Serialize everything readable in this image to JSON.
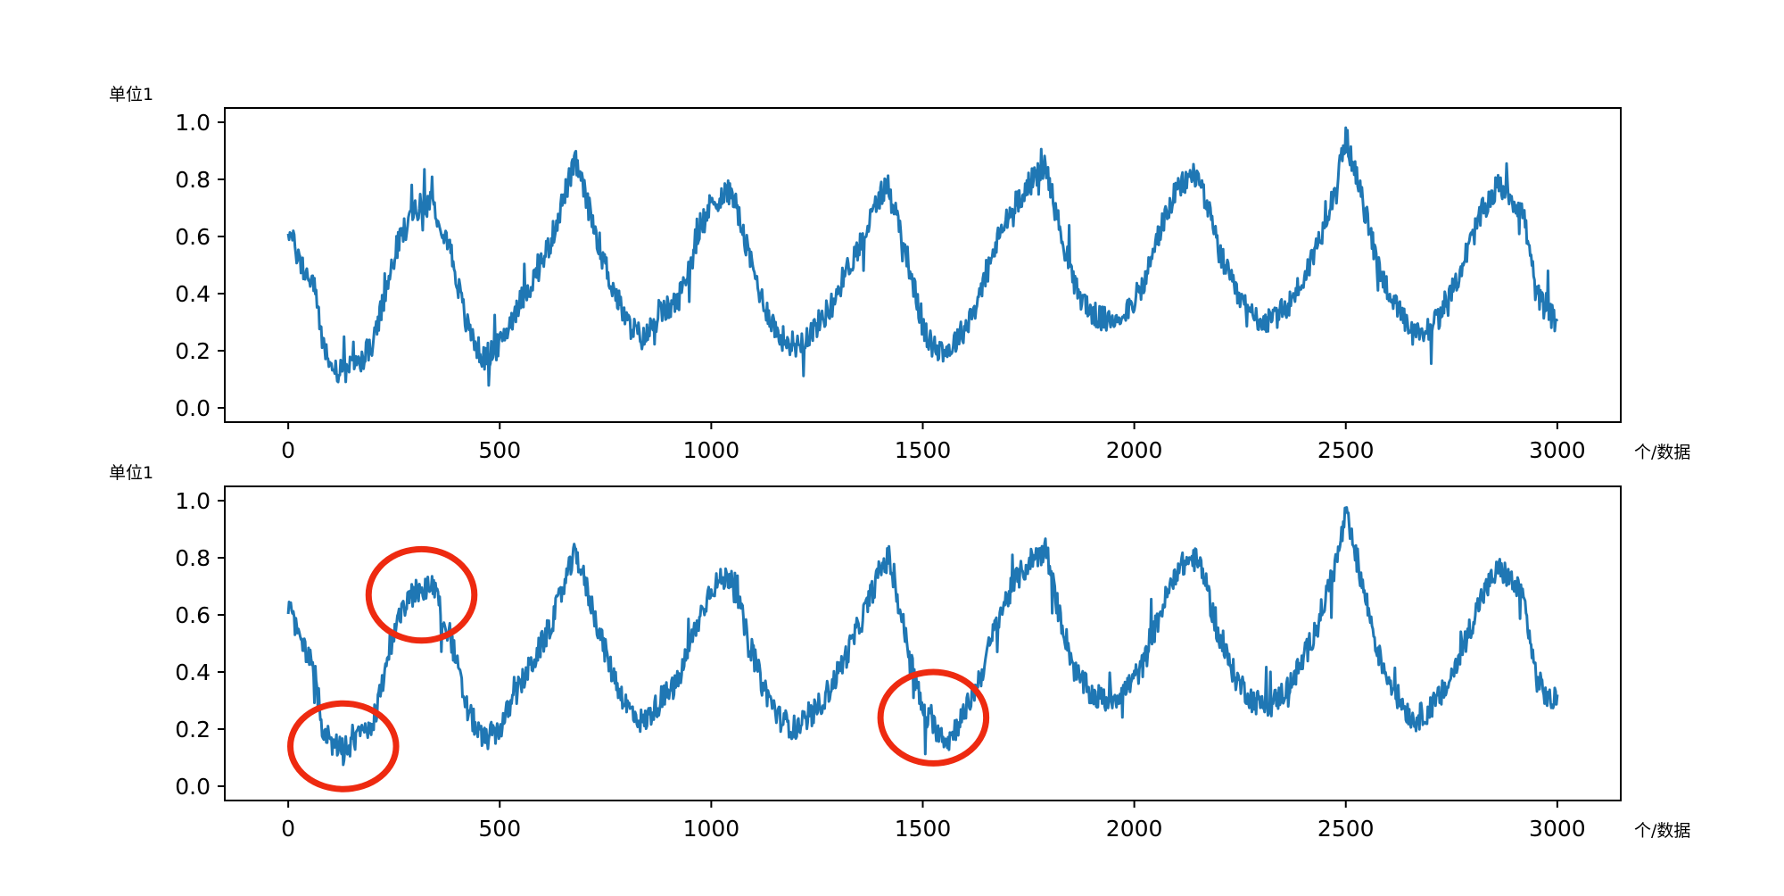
{
  "chart_data": [
    {
      "type": "line",
      "ylabel": "单位1",
      "xlabel": "个/数据",
      "xlim": [
        -150,
        3150
      ],
      "ylim": [
        -0.05,
        1.05
      ],
      "xticks": [
        0,
        500,
        1000,
        1500,
        2000,
        2500,
        3000
      ],
      "yticks": [
        0.0,
        0.2,
        0.4,
        0.6,
        0.8,
        1.0
      ],
      "xtick_labels": [
        "0",
        "500",
        "1000",
        "1500",
        "2000",
        "2500",
        "3000"
      ],
      "ytick_labels": [
        "0.0",
        "0.2",
        "0.4",
        "0.6",
        "0.8",
        "1.0"
      ],
      "grid": false,
      "legend": "none",
      "line_color": "#1f77b4",
      "series": [
        {
          "x": [
            0,
            30,
            60,
            80,
            100,
            130,
            160,
            200,
            230,
            260,
            300,
            340,
            380,
            420,
            460,
            500,
            540,
            580,
            620,
            660,
            680,
            720,
            760,
            800,
            840,
            880,
            920,
            960,
            1000,
            1050,
            1080,
            1120,
            1160,
            1200,
            1240,
            1280,
            1320,
            1360,
            1400,
            1420,
            1460,
            1500,
            1520,
            1560,
            1600,
            1640,
            1680,
            1720,
            1760,
            1790,
            1820,
            1860,
            1900,
            1940,
            1980,
            2020,
            2060,
            2100,
            2140,
            2160,
            2200,
            2240,
            2280,
            2320,
            2360,
            2400,
            2440,
            2480,
            2500,
            2540,
            2580,
            2620,
            2660,
            2700,
            2740,
            2780,
            2820,
            2860,
            2880,
            2920,
            2950,
            2980,
            3000
          ],
          "y": [
            0.63,
            0.5,
            0.43,
            0.25,
            0.14,
            0.12,
            0.15,
            0.22,
            0.4,
            0.58,
            0.7,
            0.72,
            0.58,
            0.3,
            0.17,
            0.22,
            0.35,
            0.45,
            0.58,
            0.78,
            0.86,
            0.65,
            0.45,
            0.3,
            0.24,
            0.33,
            0.37,
            0.55,
            0.72,
            0.76,
            0.58,
            0.38,
            0.25,
            0.22,
            0.27,
            0.35,
            0.48,
            0.6,
            0.75,
            0.78,
            0.55,
            0.28,
            0.22,
            0.2,
            0.28,
            0.42,
            0.6,
            0.72,
            0.8,
            0.85,
            0.65,
            0.42,
            0.33,
            0.3,
            0.34,
            0.42,
            0.62,
            0.76,
            0.82,
            0.78,
            0.55,
            0.4,
            0.32,
            0.3,
            0.35,
            0.45,
            0.6,
            0.8,
            0.95,
            0.72,
            0.48,
            0.35,
            0.25,
            0.28,
            0.36,
            0.52,
            0.68,
            0.78,
            0.76,
            0.68,
            0.4,
            0.33,
            0.3
          ]
        }
      ]
    },
    {
      "type": "line",
      "ylabel": "单位1",
      "xlabel": "个/数据",
      "xlim": [
        -150,
        3150
      ],
      "ylim": [
        -0.05,
        1.05
      ],
      "xticks": [
        0,
        500,
        1000,
        1500,
        2000,
        2500,
        3000
      ],
      "yticks": [
        0.0,
        0.2,
        0.4,
        0.6,
        0.8,
        1.0
      ],
      "xtick_labels": [
        "0",
        "500",
        "1000",
        "1500",
        "2000",
        "2500",
        "3000"
      ],
      "ytick_labels": [
        "0.0",
        "0.2",
        "0.4",
        "0.6",
        "0.8",
        "1.0"
      ],
      "grid": false,
      "legend": "none",
      "line_color": "#1f77b4",
      "annotation_color": "#ee2a10",
      "annotations": [
        {
          "type": "ellipse",
          "cx": 130,
          "cy": 0.14,
          "rx": 125,
          "ry": 0.15
        },
        {
          "type": "ellipse",
          "cx": 315,
          "cy": 0.67,
          "rx": 125,
          "ry": 0.16
        },
        {
          "type": "ellipse",
          "cx": 1525,
          "cy": 0.24,
          "rx": 125,
          "ry": 0.16
        }
      ],
      "series": [
        {
          "x": [
            0,
            30,
            60,
            80,
            100,
            130,
            160,
            200,
            230,
            260,
            300,
            340,
            380,
            420,
            460,
            500,
            540,
            580,
            620,
            660,
            680,
            720,
            760,
            800,
            840,
            880,
            920,
            960,
            1000,
            1050,
            1080,
            1120,
            1160,
            1200,
            1240,
            1280,
            1320,
            1360,
            1400,
            1420,
            1460,
            1500,
            1520,
            1560,
            1600,
            1640,
            1680,
            1720,
            1760,
            1790,
            1820,
            1860,
            1900,
            1940,
            1980,
            2020,
            2060,
            2100,
            2140,
            2160,
            2200,
            2240,
            2280,
            2320,
            2360,
            2400,
            2440,
            2480,
            2500,
            2540,
            2580,
            2620,
            2660,
            2700,
            2740,
            2780,
            2820,
            2860,
            2880,
            2920,
            2950,
            2980,
            3000
          ],
          "y": [
            0.63,
            0.5,
            0.42,
            0.22,
            0.15,
            0.12,
            0.16,
            0.22,
            0.4,
            0.6,
            0.68,
            0.7,
            0.55,
            0.28,
            0.16,
            0.2,
            0.33,
            0.44,
            0.56,
            0.74,
            0.82,
            0.62,
            0.42,
            0.28,
            0.22,
            0.3,
            0.36,
            0.54,
            0.7,
            0.74,
            0.55,
            0.36,
            0.24,
            0.2,
            0.25,
            0.34,
            0.46,
            0.6,
            0.76,
            0.8,
            0.52,
            0.26,
            0.22,
            0.16,
            0.26,
            0.4,
            0.6,
            0.72,
            0.8,
            0.83,
            0.62,
            0.4,
            0.32,
            0.3,
            0.34,
            0.42,
            0.6,
            0.76,
            0.8,
            0.76,
            0.52,
            0.38,
            0.3,
            0.28,
            0.34,
            0.44,
            0.6,
            0.8,
            0.95,
            0.7,
            0.45,
            0.32,
            0.23,
            0.27,
            0.35,
            0.5,
            0.66,
            0.76,
            0.74,
            0.66,
            0.38,
            0.3,
            0.3
          ]
        }
      ]
    }
  ]
}
